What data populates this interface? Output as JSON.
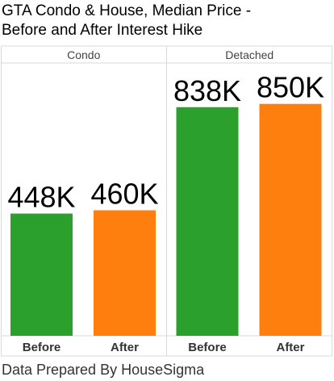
{
  "title_lines": [
    "GTA Condo & House, Median Price -",
    "Before and After Interest Hike"
  ],
  "footer": "Data Prepared By HouseSigma",
  "colors": {
    "before": "#2ca02c",
    "after": "#ff7f0e",
    "grid": "#d9d9d9",
    "panel_label": "#444444"
  },
  "chart_data": {
    "type": "bar",
    "title": "GTA Condo & House, Median Price - Before and After Interest Hike",
    "xlabel": "",
    "ylabel": "",
    "ylim": [
      0,
      1000
    ],
    "unit": "K",
    "categories": [
      "Before",
      "After"
    ],
    "panels": [
      {
        "name": "Condo",
        "values": [
          448,
          460
        ],
        "labels": [
          "448K",
          "460K"
        ]
      },
      {
        "name": "Detached",
        "values": [
          838,
          850
        ],
        "labels": [
          "838K",
          "850K"
        ]
      }
    ],
    "grid": true,
    "legend": "none"
  }
}
